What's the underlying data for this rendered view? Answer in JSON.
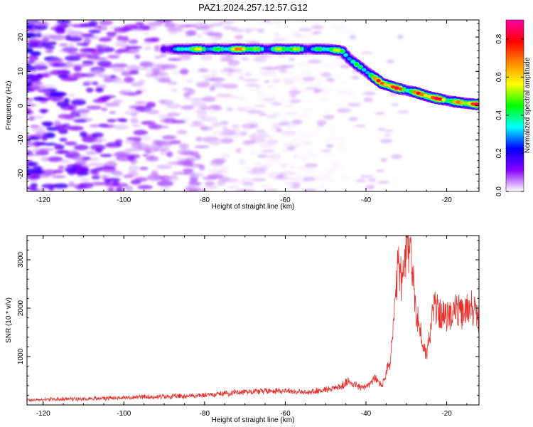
{
  "title": "PAZ1.2024.257.12.57.G12",
  "colors": {
    "snr_line": "#e8302a",
    "colorbar": [
      "#ffffff",
      "#8800ff",
      "#0000ff",
      "#00ffff",
      "#00ff00",
      "#ffff00",
      "#ff8800",
      "#ff0000",
      "#ff00aa"
    ]
  },
  "chart_data": [
    {
      "type": "heatmap",
      "xlabel": "Height of straight line (km)",
      "ylabel": "Frequency (Hz)",
      "xlim": [
        -124,
        -12
      ],
      "ylim": [
        -25,
        25
      ],
      "xticks": [
        -120,
        -100,
        -80,
        -60,
        -40,
        -20
      ],
      "yticks": [
        -20,
        -10,
        0,
        10,
        20
      ],
      "colorbar": {
        "label": "Normalized spectral amplitude",
        "range": [
          0,
          0.9
        ],
        "ticks": [
          0.0,
          0.2,
          0.4,
          0.6,
          0.8
        ]
      },
      "ridge": {
        "height_km": [
          -90,
          -80,
          -70,
          -60,
          -50,
          -46,
          -44,
          -40,
          -36,
          -32,
          -28,
          -24,
          -20,
          -16,
          -12
        ],
        "frequency_hz": [
          16.5,
          16.5,
          16.5,
          16.5,
          16.5,
          16.0,
          13.5,
          10.0,
          6.5,
          5.0,
          4.0,
          2.5,
          1.5,
          0.8,
          0.3
        ],
        "amplitude": [
          0.3,
          0.55,
          0.6,
          0.5,
          0.5,
          0.45,
          0.5,
          0.6,
          0.7,
          0.9,
          0.85,
          0.7,
          0.8,
          0.9,
          0.7
        ]
      },
      "noise_level": 0.1
    },
    {
      "type": "line",
      "xlabel": "Height of straight line (km)",
      "ylabel": "SNR (10 * v/v)",
      "xlim": [
        -124,
        -12
      ],
      "ylim": [
        0,
        3500
      ],
      "xticks": [
        -120,
        -100,
        -80,
        -60,
        -40,
        -20
      ],
      "yticks": [
        1000,
        2000,
        3000
      ],
      "series": [
        {
          "x": [
            -124,
            -110,
            -100,
            -90,
            -80,
            -70,
            -60,
            -55,
            -50,
            -46,
            -44,
            -42,
            -40,
            -38,
            -36,
            -34,
            -33,
            -32,
            -31,
            -30,
            -29,
            -28,
            -27,
            -26,
            -25,
            -24,
            -23,
            -22,
            -20,
            -18,
            -16,
            -14,
            -12
          ],
          "y": [
            100,
            130,
            150,
            170,
            200,
            280,
            300,
            250,
            320,
            380,
            500,
            380,
            360,
            550,
            400,
            900,
            1800,
            2900,
            2500,
            3100,
            3400,
            2200,
            1700,
            1300,
            1000,
            1600,
            2100,
            1900,
            1800,
            2000,
            1850,
            2100,
            1750
          ]
        }
      ]
    }
  ]
}
